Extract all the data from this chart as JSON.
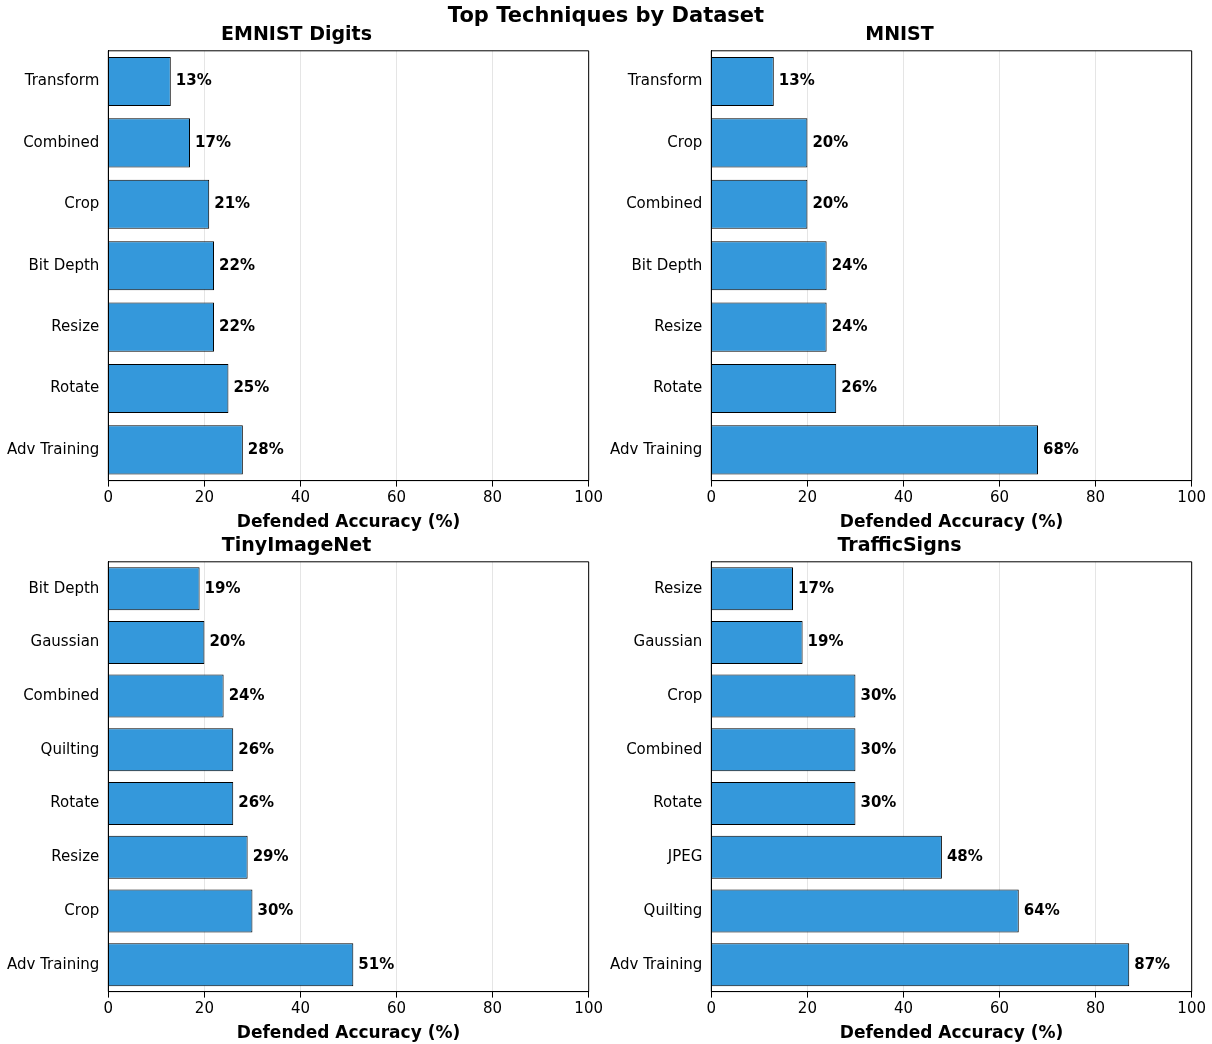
{
  "chart_data": [
    {
      "type": "bar",
      "orientation": "horizontal",
      "title": "EMNIST Digits",
      "xlabel": "Defended Accuracy (%)",
      "annotations": [
        "Top Techniques by Dataset"
      ],
      "categories": [
        "Transform",
        "Combined",
        "Crop",
        "Bit Depth",
        "Resize",
        "Rotate",
        "Adv Training"
      ],
      "values": [
        13,
        17,
        21,
        22,
        22,
        25,
        28
      ],
      "value_labels": [
        "13%",
        "17%",
        "21%",
        "22%",
        "22%",
        "25%",
        "28%"
      ],
      "color": "#3498db",
      "xlim": [
        0,
        100
      ],
      "xticks": [
        0,
        20,
        40,
        60,
        80,
        100
      ],
      "grid": "x",
      "legend": false
    },
    {
      "type": "bar",
      "orientation": "horizontal",
      "title": "MNIST",
      "xlabel": "Defended Accuracy (%)",
      "categories": [
        "Transform",
        "Crop",
        "Combined",
        "Bit Depth",
        "Resize",
        "Rotate",
        "Adv Training"
      ],
      "values": [
        13,
        20,
        20,
        24,
        24,
        26,
        68
      ],
      "value_labels": [
        "13%",
        "20%",
        "20%",
        "24%",
        "24%",
        "26%",
        "68%"
      ],
      "color": "#3498db",
      "xlim": [
        0,
        100
      ],
      "xticks": [
        0,
        20,
        40,
        60,
        80,
        100
      ],
      "grid": "x",
      "legend": false
    },
    {
      "type": "bar",
      "orientation": "horizontal",
      "title": "TinyImageNet",
      "xlabel": "Defended Accuracy (%)",
      "categories": [
        "Bit Depth",
        "Gaussian",
        "Combined",
        "Quilting",
        "Rotate",
        "Resize",
        "Crop",
        "Adv Training"
      ],
      "values": [
        19,
        20,
        24,
        26,
        26,
        29,
        30,
        51
      ],
      "value_labels": [
        "19%",
        "20%",
        "24%",
        "26%",
        "26%",
        "29%",
        "30%",
        "51%"
      ],
      "color": "#3498db",
      "xlim": [
        0,
        100
      ],
      "xticks": [
        0,
        20,
        40,
        60,
        80,
        100
      ],
      "grid": "x",
      "legend": false
    },
    {
      "type": "bar",
      "orientation": "horizontal",
      "title": "TrafficSigns",
      "xlabel": "Defended Accuracy (%)",
      "categories": [
        "Resize",
        "Gaussian",
        "Crop",
        "Combined",
        "Rotate",
        "JPEG",
        "Quilting",
        "Adv Training"
      ],
      "values": [
        17,
        19,
        30,
        30,
        30,
        48,
        64,
        87
      ],
      "value_labels": [
        "17%",
        "19%",
        "30%",
        "30%",
        "30%",
        "48%",
        "64%",
        "87%"
      ],
      "color": "#3498db",
      "xlim": [
        0,
        100
      ],
      "xticks": [
        0,
        20,
        40,
        60,
        80,
        100
      ],
      "grid": "x",
      "legend": false
    }
  ]
}
